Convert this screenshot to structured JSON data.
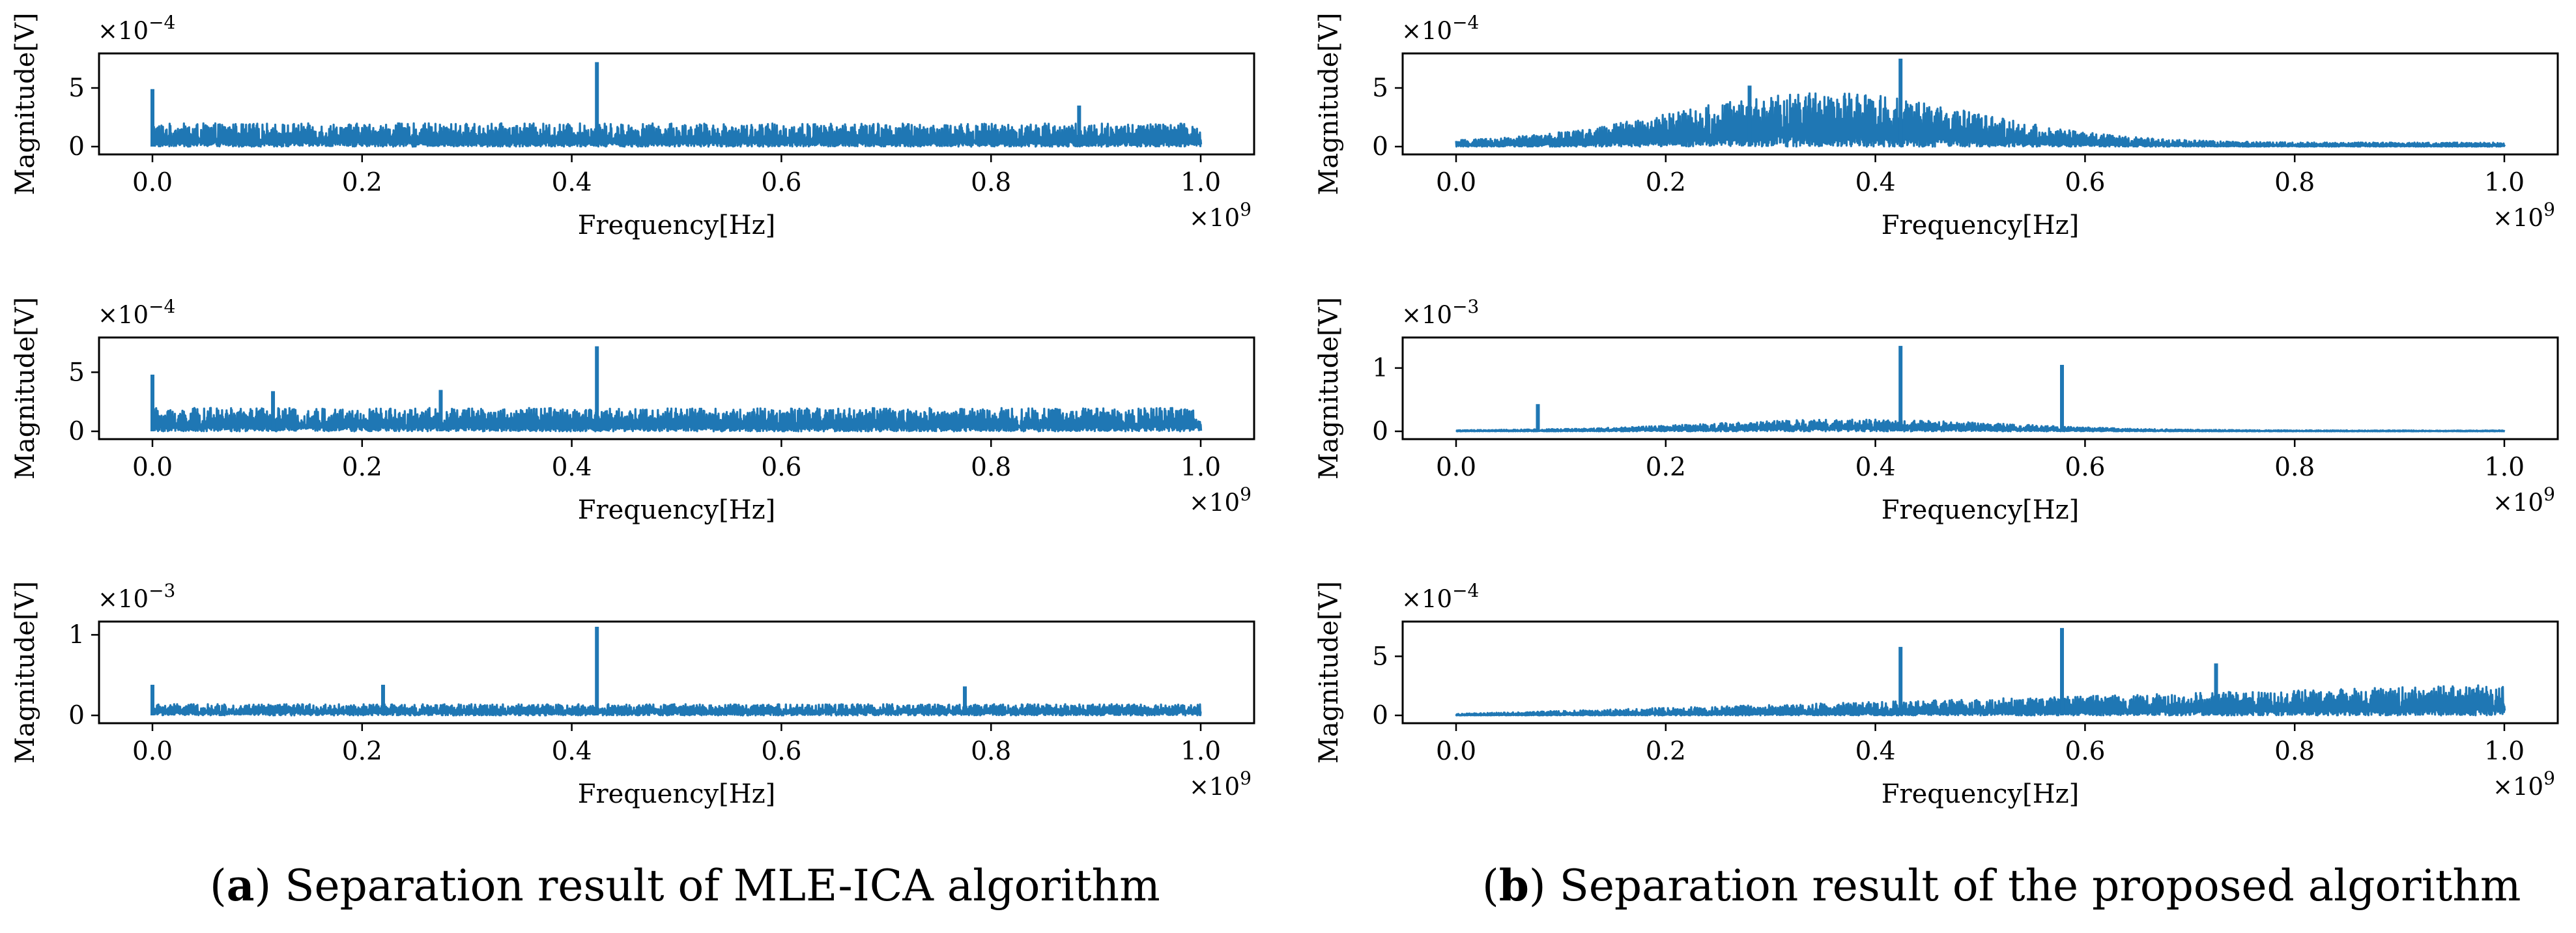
{
  "panels": [
    {
      "letter": "a",
      "caption": "Separation result of MLE-ICA algorithm"
    },
    {
      "letter": "b",
      "caption": "Separation result of the proposed algorithm"
    }
  ],
  "chart_data": [
    {
      "type": "line",
      "panel": "a",
      "row": 1,
      "xlabel": "Frequency[Hz]",
      "ylabel": "Magnitude[V]",
      "x_tick_labels": [
        "0.0",
        "0.2",
        "0.4",
        "0.6",
        "0.8",
        "1.0"
      ],
      "x_multiplier": "×10^9",
      "y_multiplier": "×10^-4",
      "y_tick_labels": [
        "0",
        "5"
      ],
      "xlim": [
        0,
        1.0
      ],
      "ylim": [
        0,
        7.5
      ],
      "series": [
        {
          "name": "spectrum",
          "color": "#1f77b4",
          "baseline": 1.2,
          "noise": 1.0,
          "peaks": [
            [
              0.0,
              4.9
            ],
            [
              0.424,
              7.2
            ],
            [
              0.884,
              3.5
            ]
          ]
        }
      ]
    },
    {
      "type": "line",
      "panel": "a",
      "row": 2,
      "xlabel": "Frequency[Hz]",
      "ylabel": "Magnitude[V]",
      "x_tick_labels": [
        "0.0",
        "0.2",
        "0.4",
        "0.6",
        "0.8",
        "1.0"
      ],
      "x_multiplier": "×10^9",
      "y_multiplier": "×10^-4",
      "y_tick_labels": [
        "0",
        "5"
      ],
      "xlim": [
        0,
        1.0
      ],
      "ylim": [
        0,
        7.5
      ],
      "series": [
        {
          "name": "spectrum",
          "color": "#1f77b4",
          "baseline": 1.2,
          "noise": 1.1,
          "peaks": [
            [
              0.0,
              4.8
            ],
            [
              0.115,
              3.4
            ],
            [
              0.275,
              3.5
            ],
            [
              0.424,
              7.2
            ]
          ]
        }
      ]
    },
    {
      "type": "line",
      "panel": "a",
      "row": 3,
      "xlabel": "Frequency[Hz]",
      "ylabel": "Magnitude[V]",
      "x_tick_labels": [
        "0.0",
        "0.2",
        "0.4",
        "0.6",
        "0.8",
        "1.0"
      ],
      "x_multiplier": "×10^9",
      "y_multiplier": "×10^-3",
      "y_tick_labels": [
        "0",
        "1"
      ],
      "xlim": [
        0,
        1.0
      ],
      "ylim": [
        0,
        1.1
      ],
      "series": [
        {
          "name": "spectrum",
          "color": "#1f77b4",
          "baseline": 0.13,
          "noise": 0.12,
          "peaks": [
            [
              0.0,
              0.38
            ],
            [
              0.22,
              0.38
            ],
            [
              0.424,
              1.1
            ],
            [
              0.775,
              0.36
            ]
          ]
        }
      ]
    },
    {
      "type": "line",
      "panel": "b",
      "row": 1,
      "xlabel": "Frequency[Hz]",
      "ylabel": "Magnitude[V]",
      "x_tick_labels": [
        "0.0",
        "0.2",
        "0.4",
        "0.6",
        "0.8",
        "1.0"
      ],
      "x_multiplier": "×10^9",
      "y_multiplier": "×10^-4",
      "y_tick_labels": [
        "0",
        "5"
      ],
      "xlim": [
        0,
        1.0
      ],
      "ylim": [
        0,
        7.5
      ],
      "series": [
        {
          "name": "spectrum",
          "color": "#1f77b4",
          "profile": "hump",
          "center": 0.35,
          "height": 2.6,
          "noise": 2.2,
          "peaks": [
            [
              0.28,
              5.2
            ],
            [
              0.424,
              7.5
            ]
          ]
        }
      ]
    },
    {
      "type": "line",
      "panel": "b",
      "row": 2,
      "xlabel": "Frequency[Hz]",
      "ylabel": "Magnitude[V]",
      "x_tick_labels": [
        "0.0",
        "0.2",
        "0.4",
        "0.6",
        "0.8",
        "1.0"
      ],
      "x_multiplier": "×10^9",
      "y_multiplier": "×10^-3",
      "y_tick_labels": [
        "0",
        "1"
      ],
      "xlim": [
        0,
        1.0
      ],
      "ylim": [
        0,
        1.4
      ],
      "series": [
        {
          "name": "spectrum",
          "color": "#1f77b4",
          "profile": "hump",
          "center": 0.38,
          "height": 0.16,
          "noise": 0.15,
          "peaks": [
            [
              0.078,
              0.43
            ],
            [
              0.424,
              1.35
            ],
            [
              0.578,
              1.05
            ]
          ]
        }
      ]
    },
    {
      "type": "line",
      "panel": "b",
      "row": 3,
      "xlabel": "Frequency[Hz]",
      "ylabel": "Magnitude[V]",
      "x_tick_labels": [
        "0.0",
        "0.2",
        "0.4",
        "0.6",
        "0.8",
        "1.0"
      ],
      "x_multiplier": "×10^9",
      "y_multiplier": "×10^-4",
      "y_tick_labels": [
        "0",
        "5"
      ],
      "xlim": [
        0,
        1.0
      ],
      "ylim": [
        0,
        7.5
      ],
      "series": [
        {
          "name": "spectrum",
          "color": "#1f77b4",
          "profile": "rising",
          "height": 1.6,
          "noise": 1.8,
          "peaks": [
            [
              0.424,
              5.8
            ],
            [
              0.578,
              7.4
            ],
            [
              0.725,
              4.4
            ]
          ]
        }
      ]
    }
  ]
}
